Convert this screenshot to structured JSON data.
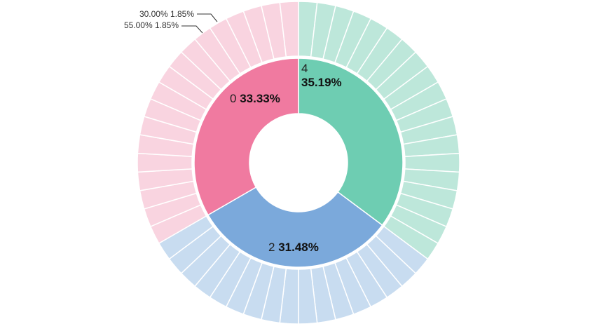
{
  "chart_data": {
    "type": "sunburst",
    "inner_ring": [
      {
        "name": "0",
        "percent_label": "33.33%",
        "value": 33.33,
        "color": "#f07aa0",
        "children_count": 18
      },
      {
        "name": "2",
        "percent_label": "31.48%",
        "value": 31.48,
        "color": "#7ba9db",
        "children_count": 17
      },
      {
        "name": "4",
        "percent_label": "35.19%",
        "value": 35.19,
        "color": "#6ecdb2",
        "children_count": 19
      }
    ],
    "outer_ring_light_colors": {
      "0": "#f9d4e0",
      "2": "#c8dcf0",
      "4": "#bde7da"
    },
    "outer_segment_percent": 1.85,
    "callouts": [
      {
        "text": "30.00%  1.85%"
      },
      {
        "text": "55.00%  1.85%"
      }
    ]
  }
}
